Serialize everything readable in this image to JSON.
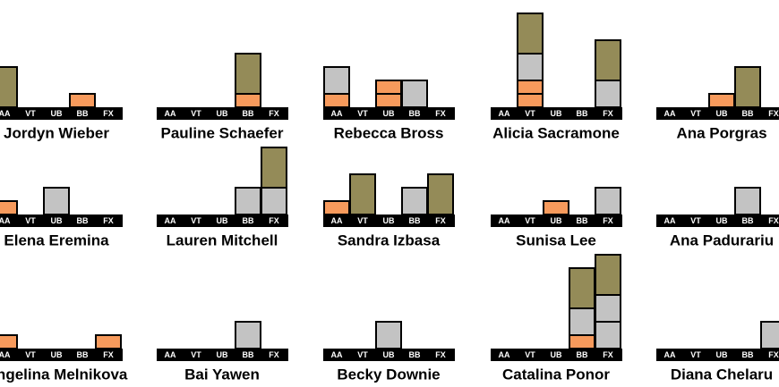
{
  "events": [
    "AA",
    "VT",
    "UB",
    "BB",
    "FX"
  ],
  "medal_colors": {
    "bronze": "#f79a5c",
    "silver": "#c3c3c3",
    "gold": "#948b58"
  },
  "gymnasts": [
    {
      "name": "Jordyn Wieber",
      "medals": [
        [
          0,
          0,
          1
        ],
        [
          0,
          0,
          0
        ],
        [
          0,
          0,
          0
        ],
        [
          1,
          0,
          0
        ],
        [
          0,
          0,
          0
        ]
      ]
    },
    {
      "name": "Pauline Schaefer",
      "medals": [
        [
          0,
          0,
          0
        ],
        [
          0,
          0,
          0
        ],
        [
          0,
          0,
          0
        ],
        [
          1,
          0,
          1
        ],
        [
          0,
          0,
          0
        ]
      ]
    },
    {
      "name": "Rebecca Bross",
      "medals": [
        [
          1,
          1,
          0
        ],
        [
          0,
          0,
          0
        ],
        [
          2,
          0,
          0
        ],
        [
          0,
          1,
          0
        ],
        [
          0,
          0,
          0
        ]
      ]
    },
    {
      "name": "Alicia Sacramone",
      "medals": [
        [
          0,
          0,
          0
        ],
        [
          2,
          1,
          1
        ],
        [
          0,
          0,
          0
        ],
        [
          0,
          0,
          0
        ],
        [
          0,
          1,
          1
        ]
      ]
    },
    {
      "name": "Ana Porgras",
      "medals": [
        [
          0,
          0,
          0
        ],
        [
          0,
          0,
          0
        ],
        [
          1,
          0,
          0
        ],
        [
          0,
          0,
          1
        ],
        [
          0,
          0,
          0
        ]
      ]
    },
    {
      "name": "Elena Eremina",
      "medals": [
        [
          1,
          0,
          0
        ],
        [
          0,
          0,
          0
        ],
        [
          0,
          1,
          0
        ],
        [
          0,
          0,
          0
        ],
        [
          0,
          0,
          0
        ]
      ]
    },
    {
      "name": "Lauren Mitchell",
      "medals": [
        [
          0,
          0,
          0
        ],
        [
          0,
          0,
          0
        ],
        [
          0,
          0,
          0
        ],
        [
          0,
          1,
          0
        ],
        [
          0,
          1,
          1
        ]
      ]
    },
    {
      "name": "Sandra Izbasa",
      "medals": [
        [
          1,
          0,
          0
        ],
        [
          0,
          0,
          1
        ],
        [
          0,
          0,
          0
        ],
        [
          0,
          1,
          0
        ],
        [
          0,
          0,
          1
        ]
      ]
    },
    {
      "name": "Sunisa Lee",
      "medals": [
        [
          0,
          0,
          0
        ],
        [
          0,
          0,
          0
        ],
        [
          1,
          0,
          0
        ],
        [
          0,
          0,
          0
        ],
        [
          0,
          1,
          0
        ]
      ]
    },
    {
      "name": "Ana Padurariu",
      "medals": [
        [
          0,
          0,
          0
        ],
        [
          0,
          0,
          0
        ],
        [
          0,
          0,
          0
        ],
        [
          0,
          1,
          0
        ],
        [
          0,
          0,
          0
        ]
      ]
    },
    {
      "name": "Angelina Melnikova",
      "medals": [
        [
          1,
          0,
          0
        ],
        [
          0,
          0,
          0
        ],
        [
          0,
          0,
          0
        ],
        [
          0,
          0,
          0
        ],
        [
          1,
          0,
          0
        ]
      ]
    },
    {
      "name": "Bai Yawen",
      "medals": [
        [
          0,
          0,
          0
        ],
        [
          0,
          0,
          0
        ],
        [
          0,
          0,
          0
        ],
        [
          0,
          1,
          0
        ],
        [
          0,
          0,
          0
        ]
      ]
    },
    {
      "name": "Becky Downie",
      "medals": [
        [
          0,
          0,
          0
        ],
        [
          0,
          0,
          0
        ],
        [
          0,
          1,
          0
        ],
        [
          0,
          0,
          0
        ],
        [
          0,
          0,
          0
        ]
      ]
    },
    {
      "name": "Catalina Ponor",
      "medals": [
        [
          0,
          0,
          0
        ],
        [
          0,
          0,
          0
        ],
        [
          0,
          0,
          0
        ],
        [
          1,
          1,
          1
        ],
        [
          0,
          2,
          1
        ]
      ]
    },
    {
      "name": "Diana Chelaru",
      "medals": [
        [
          0,
          0,
          0
        ],
        [
          0,
          0,
          0
        ],
        [
          0,
          0,
          0
        ],
        [
          0,
          0,
          0
        ],
        [
          0,
          1,
          0
        ]
      ]
    }
  ]
}
